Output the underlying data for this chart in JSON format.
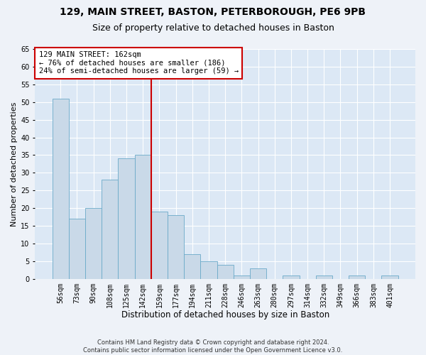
{
  "title1": "129, MAIN STREET, BASTON, PETERBOROUGH, PE6 9PB",
  "title2": "Size of property relative to detached houses in Baston",
  "xlabel": "Distribution of detached houses by size in Baston",
  "ylabel": "Number of detached properties",
  "categories": [
    "56sqm",
    "73sqm",
    "90sqm",
    "108sqm",
    "125sqm",
    "142sqm",
    "159sqm",
    "177sqm",
    "194sqm",
    "211sqm",
    "228sqm",
    "246sqm",
    "263sqm",
    "280sqm",
    "297sqm",
    "314sqm",
    "332sqm",
    "349sqm",
    "366sqm",
    "383sqm",
    "401sqm"
  ],
  "values": [
    51,
    17,
    20,
    28,
    34,
    35,
    19,
    18,
    7,
    5,
    4,
    1,
    3,
    0,
    1,
    0,
    1,
    0,
    1,
    0,
    1
  ],
  "bar_color": "#c9d9e8",
  "bar_edge_color": "#6aaac8",
  "vline_color": "#cc0000",
  "annotation_box_edge_color": "#cc0000",
  "annotation_line1": "129 MAIN STREET: 162sqm",
  "annotation_line2": "← 76% of detached houses are smaller (186)",
  "annotation_line3": "24% of semi-detached houses are larger (59) →",
  "vline_bin_index": 6,
  "ylim": [
    0,
    65
  ],
  "yticks": [
    0,
    5,
    10,
    15,
    20,
    25,
    30,
    35,
    40,
    45,
    50,
    55,
    60,
    65
  ],
  "footnote1": "Contains HM Land Registry data © Crown copyright and database right 2024.",
  "footnote2": "Contains public sector information licensed under the Open Government Licence v3.0.",
  "fig_facecolor": "#eef2f8",
  "ax_facecolor": "#dce8f5",
  "grid_color": "#ffffff",
  "title1_fontsize": 10,
  "title2_fontsize": 9,
  "tick_fontsize": 7,
  "xlabel_fontsize": 8.5,
  "ylabel_fontsize": 8,
  "footnote_fontsize": 6,
  "annot_fontsize": 7.5
}
